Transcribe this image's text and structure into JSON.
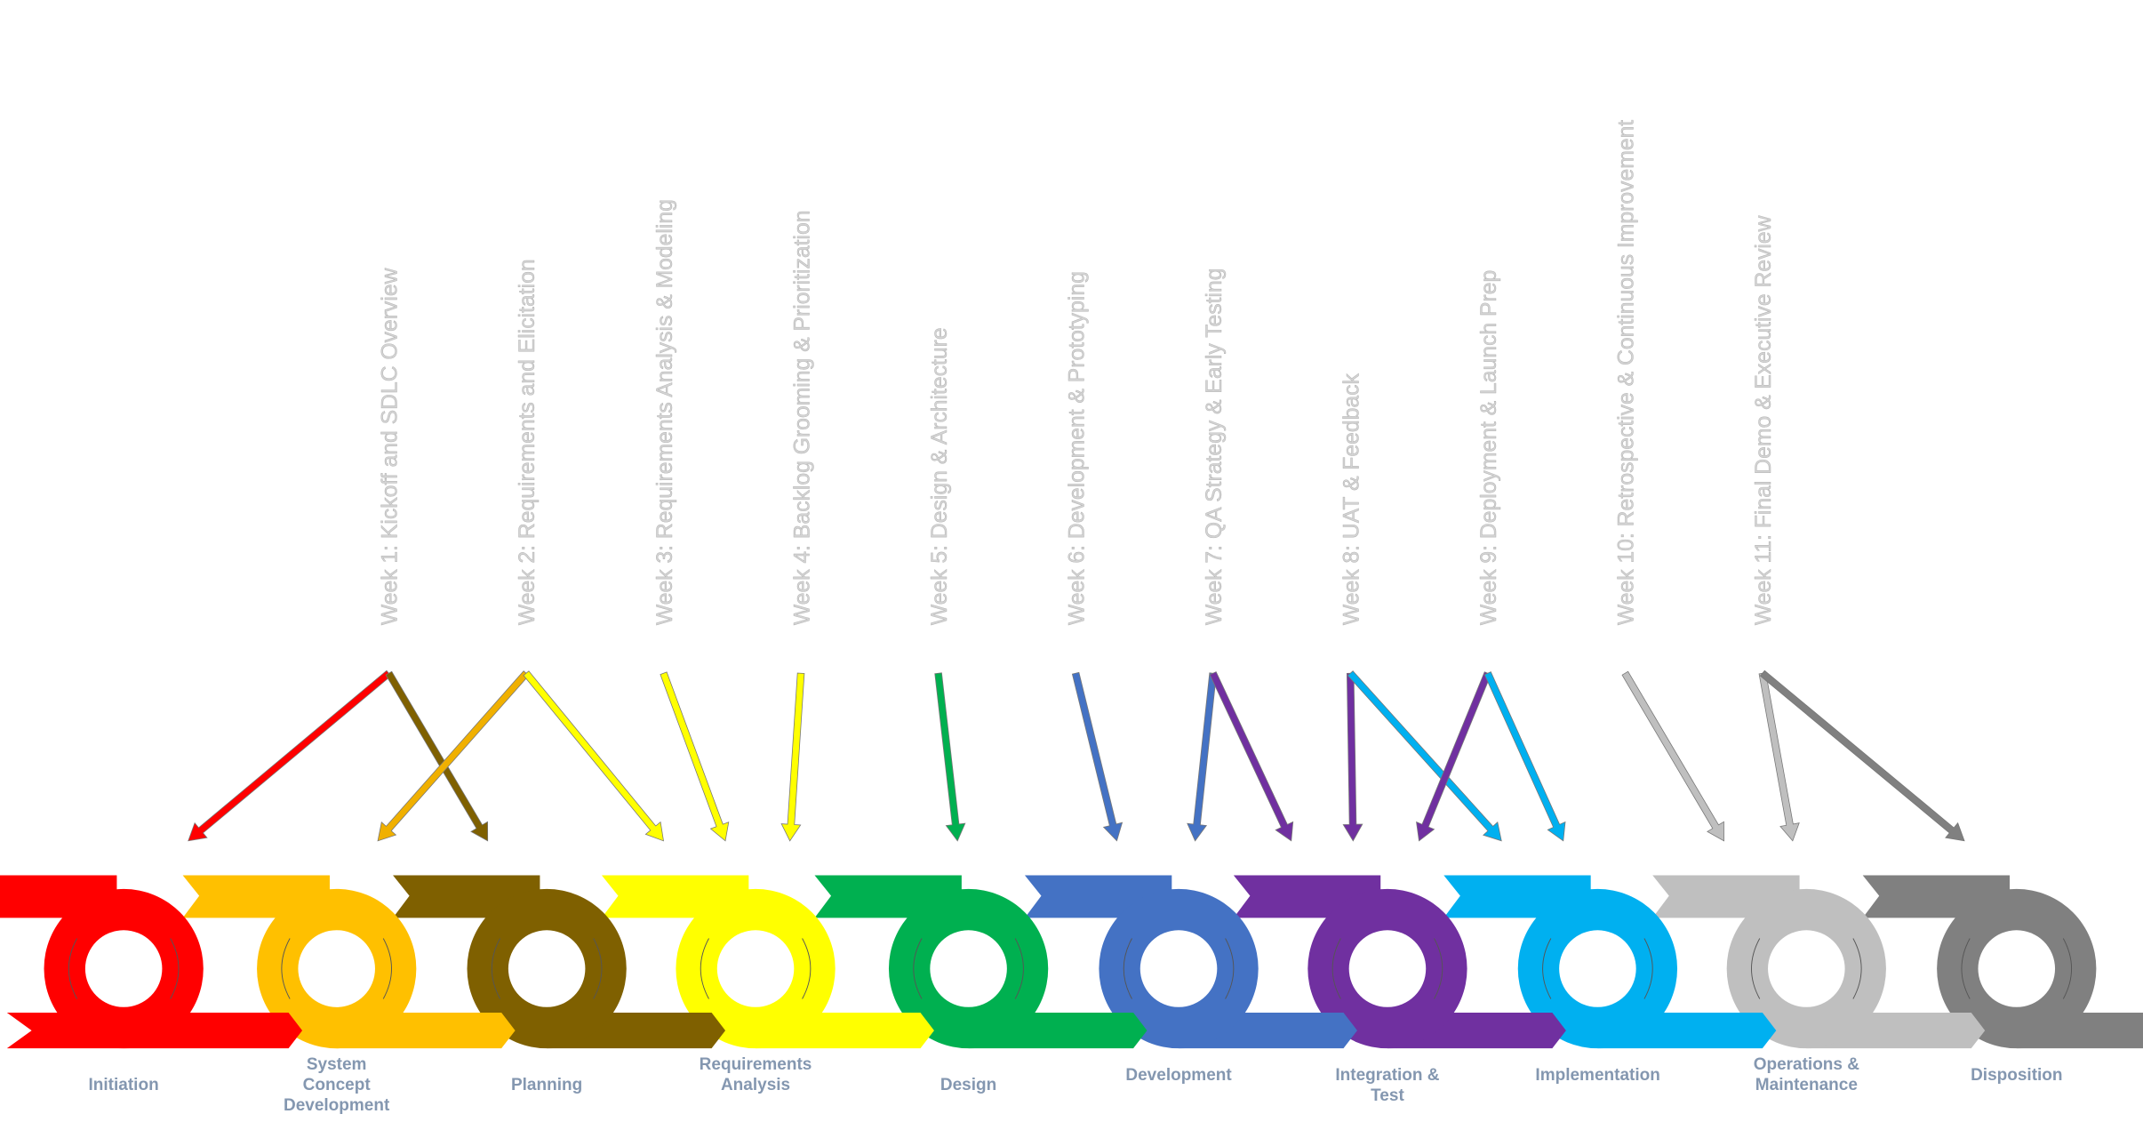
{
  "weeks": [
    "Week 1: Kickoff and SDLC Overview",
    "Week 2: Requirements and Elicitation",
    "Week 3: Requirements Analysis & Modeling",
    "Week 4: Backlog Grooming & Prioritization",
    "Week 5: Design & Architecture",
    "Week 6: Development & Prototyping",
    "Week 7: QA Strategy & Early Testing",
    "Week 8: UAT & Feedback",
    "Week 9: Deployment & Launch Prep",
    "Week 10: Retrospective & Continuous Improvement",
    "Week 11: Final Demo & Executive Review"
  ],
  "phases": [
    {
      "label": "Initiation",
      "color": "#ff0000"
    },
    {
      "label": "System Concept Development",
      "color": "#ffc000"
    },
    {
      "label": "Planning",
      "color": "#7f6000"
    },
    {
      "label": "Requirements Analysis",
      "color": "#ffff00"
    },
    {
      "label": "Design",
      "color": "#00b050"
    },
    {
      "label": "Development",
      "color": "#4472c4"
    },
    {
      "label": "Integration & Test",
      "color": "#7030a0"
    },
    {
      "label": "Implementation",
      "color": "#00b0f0"
    },
    {
      "label": "Operations & Maintenance",
      "color": "#bfbfbf"
    },
    {
      "label": "Disposition",
      "color": "#808080"
    }
  ]
}
